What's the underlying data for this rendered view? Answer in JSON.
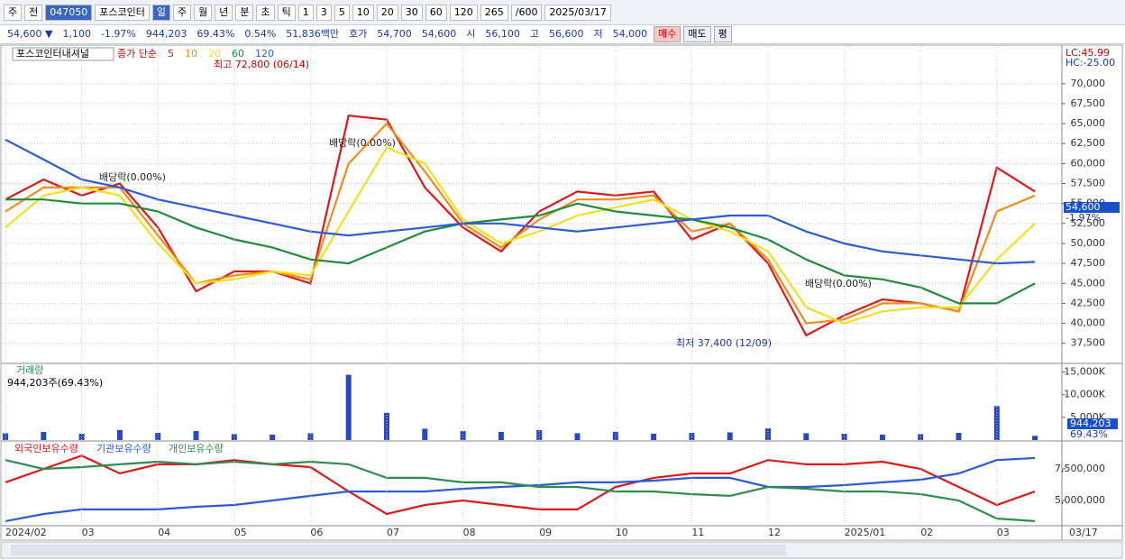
{
  "toolbar": {
    "items": [
      "주",
      "전",
      "047050",
      "포스코인터",
      "일",
      "주",
      "월",
      "년",
      "분",
      "초",
      "틱",
      "1",
      "3",
      "5",
      "10",
      "20",
      "30",
      "60",
      "120",
      "265",
      "/600",
      "2025/03/17"
    ]
  },
  "info_bar": {
    "items": [
      "54,600 ▼",
      "1,100",
      "-1.97%",
      "944,203",
      "69.43%",
      "0.54%",
      "51,836백만",
      "호가",
      "54,700",
      "54,600",
      "시",
      "56,100",
      "고",
      "56,600",
      "저",
      "54,000",
      "매수",
      "매도",
      "평"
    ]
  },
  "chart_data": [
    {
      "type": "line",
      "stock_name": "포스코인터내셔널",
      "legend_title": "종가 단순",
      "categories": [
        "2024/02",
        null,
        "03",
        null,
        "04",
        null,
        "05",
        null,
        "06",
        null,
        "07",
        null,
        "08",
        null,
        "09",
        null,
        "10",
        null,
        "11",
        null,
        "12",
        null,
        "2025/01",
        null,
        "02",
        null,
        "03",
        null
      ],
      "x_end_label": "03/17",
      "series": [
        {
          "name": "5",
          "color": "#e01818",
          "values": [
            55500,
            58000,
            56000,
            57500,
            52000,
            44000,
            46500,
            46500,
            45000,
            66000,
            65500,
            57000,
            52000,
            49000,
            54000,
            56500,
            56000,
            56500,
            50500,
            52500,
            47500,
            38500,
            41000,
            43000,
            42500,
            41500,
            59500,
            56500
          ]
        },
        {
          "name": "10",
          "color": "#f08c1c",
          "values": [
            54000,
            57000,
            57000,
            57000,
            51000,
            45000,
            46000,
            46500,
            45500,
            60000,
            65000,
            59000,
            52500,
            49500,
            53000,
            55500,
            55500,
            56000,
            51500,
            52500,
            48000,
            40000,
            40500,
            42500,
            42500,
            41500,
            54000,
            56000
          ]
        },
        {
          "name": "20",
          "color": "#f0e020",
          "values": [
            52000,
            56000,
            57000,
            56000,
            50000,
            45000,
            45500,
            46500,
            46000,
            54000,
            62000,
            60000,
            53000,
            50000,
            51500,
            53500,
            54500,
            55500,
            53000,
            51500,
            49000,
            42000,
            40000,
            41500,
            42000,
            42000,
            48000,
            52500
          ]
        },
        {
          "name": "60",
          "color": "#1e8c3c",
          "values": [
            55500,
            55500,
            55000,
            55000,
            54000,
            52000,
            50500,
            49500,
            48000,
            47500,
            49500,
            51500,
            52500,
            53000,
            53500,
            55000,
            54000,
            53500,
            53000,
            52000,
            50500,
            48000,
            46000,
            45500,
            44500,
            42500,
            42500,
            45000
          ]
        },
        {
          "name": "120",
          "color": "#2c5ad8",
          "values": [
            63000,
            60500,
            58000,
            57000,
            55500,
            54500,
            53500,
            52500,
            51500,
            51000,
            51500,
            52000,
            52500,
            52500,
            52000,
            51500,
            52000,
            52500,
            53000,
            53500,
            53500,
            51500,
            50000,
            49000,
            48500,
            48000,
            47500,
            47700
          ]
        }
      ],
      "ylim": [
        35100,
        74600
      ],
      "yticks": [
        {
          "value": 37500,
          "label": "37,500"
        },
        {
          "value": 40000,
          "label": "40,000"
        },
        {
          "value": 42500,
          "label": "42,500"
        },
        {
          "value": 45000,
          "label": "45,000"
        },
        {
          "value": 47500,
          "label": "47,500"
        },
        {
          "value": 50000,
          "label": "50,000"
        },
        {
          "value": 52500,
          "label": "52,500"
        },
        {
          "value": 55000,
          "label": "55,000"
        },
        {
          "value": 57500,
          "label": "57,500"
        },
        {
          "value": 60000,
          "label": "60,000"
        },
        {
          "value": 62500,
          "label": "62,500"
        },
        {
          "value": 65000,
          "label": "65,000"
        },
        {
          "value": 67500,
          "label": "67,500"
        },
        {
          "value": 70000,
          "label": "70,000"
        }
      ],
      "grid": true,
      "annotations": [
        "최고 72,800 (06/14)",
        "최저 37,400 (12/09)",
        "배당락(0.00%)",
        "배당락(0.00%)",
        "배당락(0.00%)"
      ],
      "right_labels": [
        "LC:45.99",
        "HC:-25.00",
        "54,600",
        "-1.97%"
      ]
    },
    {
      "type": "bar",
      "title": "거래량",
      "subtitle": "944,203주(69.43%)",
      "color": "#2848c0",
      "values": [
        1500000,
        1800000,
        1400000,
        2200000,
        1600000,
        2000000,
        1300000,
        1200000,
        1500000,
        14400000,
        6000000,
        2500000,
        2000000,
        1800000,
        2200000,
        1500000,
        1800000,
        1400000,
        1600000,
        1700000,
        2600000,
        1500000,
        1400000,
        1200000,
        1300000,
        1600000,
        7500000,
        944203
      ],
      "ylim": [
        0,
        16500000
      ],
      "yticks": [
        {
          "value": 5000000,
          "label": "5,000K"
        },
        {
          "value": 10000000,
          "label": "10,000K"
        },
        {
          "value": 15000000,
          "label": "15,000K"
        }
      ],
      "right_labels": [
        "944,203",
        "69.43%"
      ]
    },
    {
      "type": "line",
      "series": [
        {
          "name": "외국인보유수량",
          "color": "#e01818",
          "values": [
            6430000,
            7500000,
            8550000,
            7140000,
            7860000,
            7860000,
            8200000,
            7860000,
            7640000,
            5710000,
            3930000,
            4640000,
            5000000,
            4640000,
            4290000,
            4290000,
            6070000,
            6790000,
            7140000,
            7140000,
            8200000,
            7860000,
            7860000,
            8070000,
            7500000,
            6070000,
            4640000,
            5710000
          ]
        },
        {
          "name": "기관보유수량",
          "color": "#2c5ad8",
          "values": [
            3360000,
            3930000,
            4290000,
            4290000,
            4290000,
            4500000,
            4640000,
            5000000,
            5360000,
            5710000,
            5710000,
            5710000,
            5930000,
            6070000,
            6210000,
            6430000,
            6430000,
            6570000,
            6790000,
            6790000,
            6070000,
            6070000,
            6210000,
            6430000,
            6640000,
            7140000,
            8200000,
            8360000
          ]
        },
        {
          "name": "개인보유수량",
          "color": "#2e8c50",
          "values": [
            8200000,
            7500000,
            7640000,
            7860000,
            8070000,
            7860000,
            8070000,
            7860000,
            8070000,
            7860000,
            6790000,
            6790000,
            6430000,
            6430000,
            6070000,
            6070000,
            5710000,
            5710000,
            5500000,
            5360000,
            6070000,
            5930000,
            5710000,
            5710000,
            5500000,
            5000000,
            3570000,
            3360000
          ]
        }
      ],
      "ylim": [
        3070000,
        9640000
      ],
      "yticks": [
        {
          "value": 5000000,
          "label": "5,000,000"
        },
        {
          "value": 7500000,
          "label": "7,500,000"
        }
      ]
    }
  ]
}
